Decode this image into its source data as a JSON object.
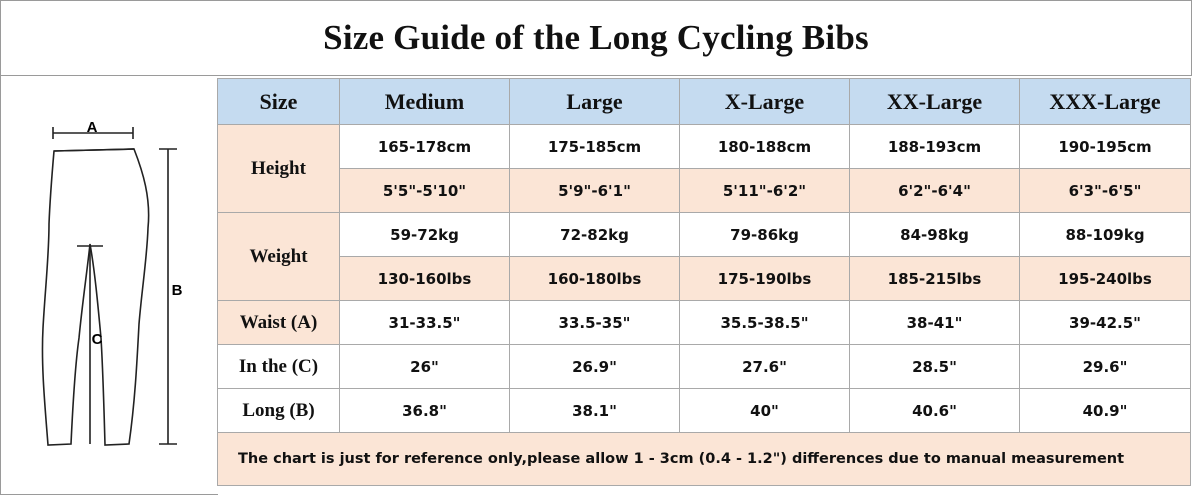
{
  "title": "Size Guide of the Long Cycling Bibs",
  "diagram": {
    "label_a": "A",
    "label_b": "B",
    "label_c": "C"
  },
  "table": {
    "header": [
      "Size",
      "Medium",
      "Large",
      "X-Large",
      "XX-Large",
      "XXX-Large"
    ],
    "height": {
      "label": "Height",
      "cm": [
        "165-178cm",
        "175-185cm",
        "180-188cm",
        "188-193cm",
        "190-195cm"
      ],
      "ft": [
        "5'5\"-5'10\"",
        "5'9\"-6'1\"",
        "5'11\"-6'2\"",
        "6'2\"-6'4\"",
        "6'3\"-6'5\""
      ]
    },
    "weight": {
      "label": "Weight",
      "kg": [
        "59-72kg",
        "72-82kg",
        "79-86kg",
        "84-98kg",
        "88-109kg"
      ],
      "lbs": [
        "130-160lbs",
        "160-180lbs",
        "175-190lbs",
        "185-215lbs",
        "195-240lbs"
      ]
    },
    "waist": {
      "label": "Waist (A)",
      "values": [
        "31-33.5\"",
        "33.5-35\"",
        "35.5-38.5\"",
        "38-41\"",
        "39-42.5\""
      ]
    },
    "inseam": {
      "label": "In the (C)",
      "values": [
        "26\"",
        "26.9\"",
        "27.6\"",
        "28.5\"",
        "29.6\""
      ]
    },
    "long": {
      "label": "Long (B)",
      "values": [
        "36.8\"",
        "38.1\"",
        "40\"",
        "40.6\"",
        "40.9\""
      ]
    },
    "note": "The chart is just for reference only,please  allow 1 - 3cm (0.4 - 1.2\") differences due to manual measurement"
  },
  "colors": {
    "header_bg": "#c5dbf0",
    "peach_bg": "#fbe5d6",
    "border": "#a9a9a9"
  }
}
